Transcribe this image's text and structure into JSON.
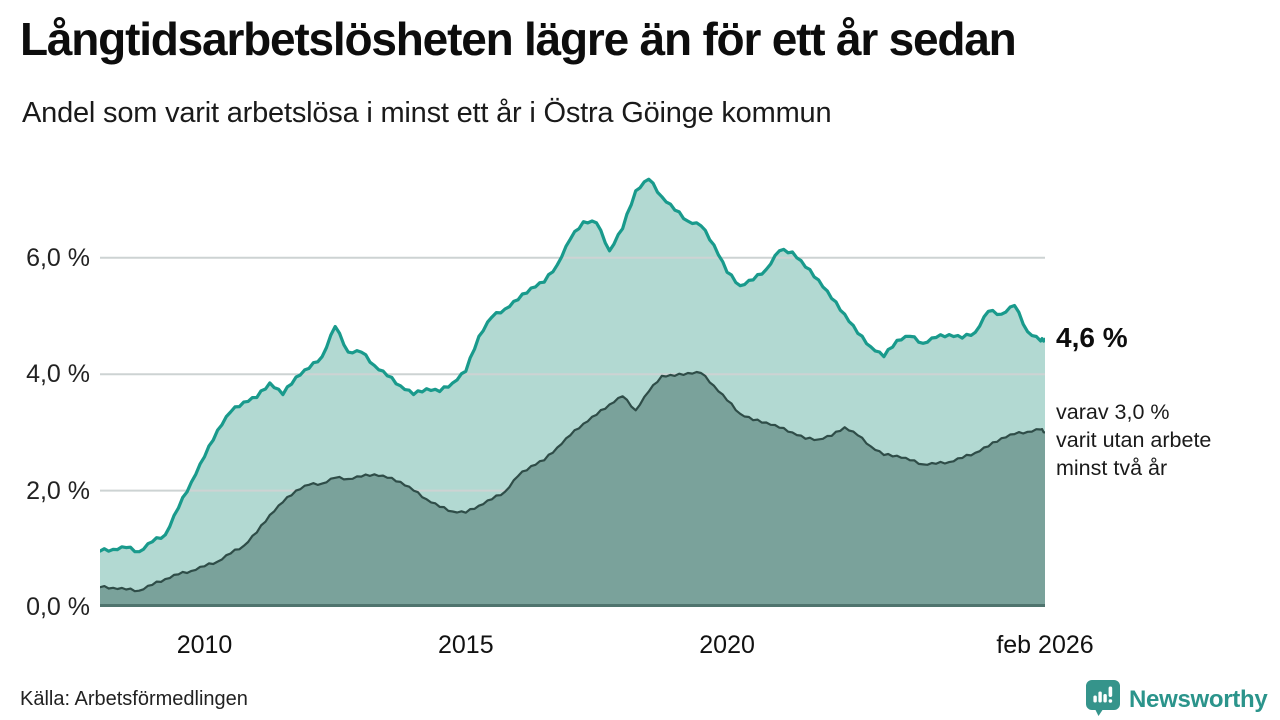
{
  "header": {
    "title": "Långtidsarbetslösheten lägre än för ett år sedan",
    "subtitle": "Andel som varit arbetslösa i minst ett år i Östra Göinge kommun"
  },
  "annotations": {
    "latest_value": "4,6 %",
    "secondary": "varav 3,0 %\nvarit utan arbete\nminst två år"
  },
  "footer": {
    "source": "Källa: Arbetsförmedlingen",
    "brand": "Newsworthy"
  },
  "colors": {
    "line_total": "#199a8c",
    "fill_total": "#b2d9d2",
    "line_two_year": "#2f4d48",
    "fill_two_year": "#7aa29b",
    "baseline": "#4f746e",
    "gridline": "#cdd3d3",
    "brand_teal": "#2b948b",
    "logo_teal": "#35948b"
  },
  "chart_data": {
    "type": "area",
    "title": "Långtidsarbetslösheten lägre än för ett år sedan",
    "subtitle": "Andel som varit arbetslösa i minst ett år i Östra Göinge kommun",
    "xlabel": "",
    "ylabel": "",
    "xlim": [
      2008.0,
      2026.083
    ],
    "ylim": [
      0,
      7.68
    ],
    "grid": "horizontal",
    "legend": "none",
    "x_ticks": [
      {
        "label": "2010",
        "x": 2010
      },
      {
        "label": "2015",
        "x": 2015
      },
      {
        "label": "2020",
        "x": 2020
      },
      {
        "label": "feb 2026",
        "x": 2026.083
      }
    ],
    "y_ticks": [
      {
        "label": "0,0 %",
        "value": 0
      },
      {
        "label": "2,0 %",
        "value": 2
      },
      {
        "label": "4,0 %",
        "value": 4
      },
      {
        "label": "6,0 %",
        "value": 6
      }
    ],
    "x": [
      2008,
      2008.25,
      2008.5,
      2008.75,
      2009,
      2009.25,
      2009.5,
      2009.75,
      2010,
      2010.25,
      2010.5,
      2010.75,
      2011,
      2011.25,
      2011.5,
      2011.75,
      2012,
      2012.25,
      2012.5,
      2012.75,
      2013,
      2013.25,
      2013.5,
      2013.75,
      2014,
      2014.25,
      2014.5,
      2014.75,
      2015,
      2015.25,
      2015.5,
      2015.75,
      2016,
      2016.25,
      2016.5,
      2016.75,
      2017,
      2017.25,
      2017.5,
      2017.75,
      2018,
      2018.25,
      2018.5,
      2018.75,
      2019,
      2019.25,
      2019.5,
      2019.75,
      2020,
      2020.25,
      2020.5,
      2020.75,
      2021,
      2021.25,
      2021.5,
      2021.75,
      2022,
      2022.25,
      2022.5,
      2022.75,
      2023,
      2023.25,
      2023.5,
      2023.75,
      2024,
      2024.25,
      2024.5,
      2024.75,
      2025,
      2025.25,
      2025.5,
      2025.75,
      2026,
      2026.083
    ],
    "series": [
      {
        "name": "Arbetslösa minst ett år",
        "color": "#199a8c",
        "fill": "#b2d9d2",
        "end_label": "4,6 %",
        "values": [
          0.96,
          0.99,
          1.02,
          0.95,
          1.12,
          1.24,
          1.7,
          2.15,
          2.58,
          3.04,
          3.35,
          3.52,
          3.6,
          3.85,
          3.65,
          3.95,
          4.1,
          4.3,
          4.82,
          4.38,
          4.38,
          4.15,
          3.97,
          3.8,
          3.65,
          3.75,
          3.7,
          3.85,
          4.05,
          4.65,
          4.98,
          5.12,
          5.28,
          5.48,
          5.58,
          5.88,
          6.32,
          6.62,
          6.6,
          6.12,
          6.5,
          7.15,
          7.35,
          7.05,
          6.82,
          6.63,
          6.55,
          6.22,
          5.75,
          5.52,
          5.62,
          5.8,
          6.12,
          6.1,
          5.84,
          5.62,
          5.3,
          5.03,
          4.7,
          4.47,
          4.3,
          4.58,
          4.65,
          4.53,
          4.63,
          4.68,
          4.62,
          4.72,
          5.08,
          5.03,
          5.18,
          4.73,
          4.57,
          4.6
        ]
      },
      {
        "name": "Arbetslösa minst två år",
        "color": "#2f4d48",
        "fill": "#7aa29b",
        "end_label": "varav 3,0 % varit utan arbete minst två år",
        "values": [
          0.34,
          0.33,
          0.3,
          0.28,
          0.38,
          0.48,
          0.56,
          0.62,
          0.7,
          0.78,
          0.92,
          1.05,
          1.28,
          1.58,
          1.8,
          2.0,
          2.1,
          2.12,
          2.22,
          2.2,
          2.24,
          2.28,
          2.22,
          2.15,
          2.0,
          1.85,
          1.72,
          1.64,
          1.62,
          1.74,
          1.85,
          1.98,
          2.25,
          2.42,
          2.52,
          2.74,
          2.95,
          3.15,
          3.3,
          3.48,
          3.62,
          3.38,
          3.7,
          3.97,
          3.97,
          4.02,
          4.02,
          3.8,
          3.55,
          3.32,
          3.21,
          3.17,
          3.08,
          3.0,
          2.89,
          2.88,
          2.94,
          3.09,
          2.95,
          2.76,
          2.61,
          2.6,
          2.52,
          2.45,
          2.46,
          2.49,
          2.56,
          2.65,
          2.76,
          2.9,
          2.97,
          3.01,
          3.05,
          3.0
        ]
      }
    ]
  }
}
